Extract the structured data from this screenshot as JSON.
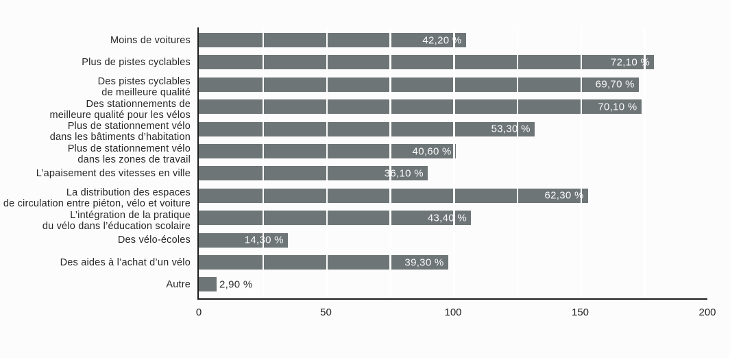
{
  "page": {
    "background": "#fcfcfc"
  },
  "chart_data": {
    "type": "bar",
    "orientation": "horizontal",
    "title": "",
    "xlabel": "",
    "ylabel": "",
    "categories": [
      "Moins de voitures",
      "Plus de pistes cyclables",
      "Des pistes cyclables\nde meilleure qualité",
      "Des stationnements de\nmeilleure qualité pour les vélos",
      "Plus de stationnement vélo\ndans les bâtiments d’habitation",
      "Plus de stationnement vélo\ndans les zones de travail",
      "L’apaisement des vitesses en ville",
      "La distribution des espaces\nde circulation entre piéton, vélo et voiture",
      "L’intégration de la pratique\ndu vélo dans l’éducation scolaire",
      "Des vélo-écoles",
      "Des aides à l’achat d’un vélo",
      "Autre"
    ],
    "values_percent": [
      42.2,
      72.1,
      69.7,
      70.1,
      53.3,
      40.6,
      36.1,
      62.3,
      43.4,
      14.3,
      39.3,
      2.9
    ],
    "value_labels": [
      "42,20 %",
      "72,10 %",
      "69,70 %",
      "70,10 %",
      "53,30 %",
      "40,60 %",
      "36,10 %",
      "62,30 %",
      "43,40 %",
      "14,30 %",
      "39,30 %",
      "2,90 %"
    ],
    "bar_lengths_axis_units": [
      105,
      179,
      173,
      174,
      132,
      101,
      90,
      153,
      107,
      35,
      98,
      7
    ],
    "x_ticks": [
      "0",
      "50",
      "100",
      "150",
      "200"
    ],
    "xlim": [
      0,
      200
    ],
    "gridlines": {
      "axis": "x",
      "interval": 25,
      "color": "#ffffff",
      "drawn_over_bars": true
    },
    "legend": "none",
    "colors": {
      "bar": "#6e7576",
      "axis": "#1c1c1c",
      "value_label_inside": "#fafafa",
      "value_label_outside": "#2e2e2e",
      "category_label": "#262626",
      "tick_label": "#222222"
    }
  }
}
